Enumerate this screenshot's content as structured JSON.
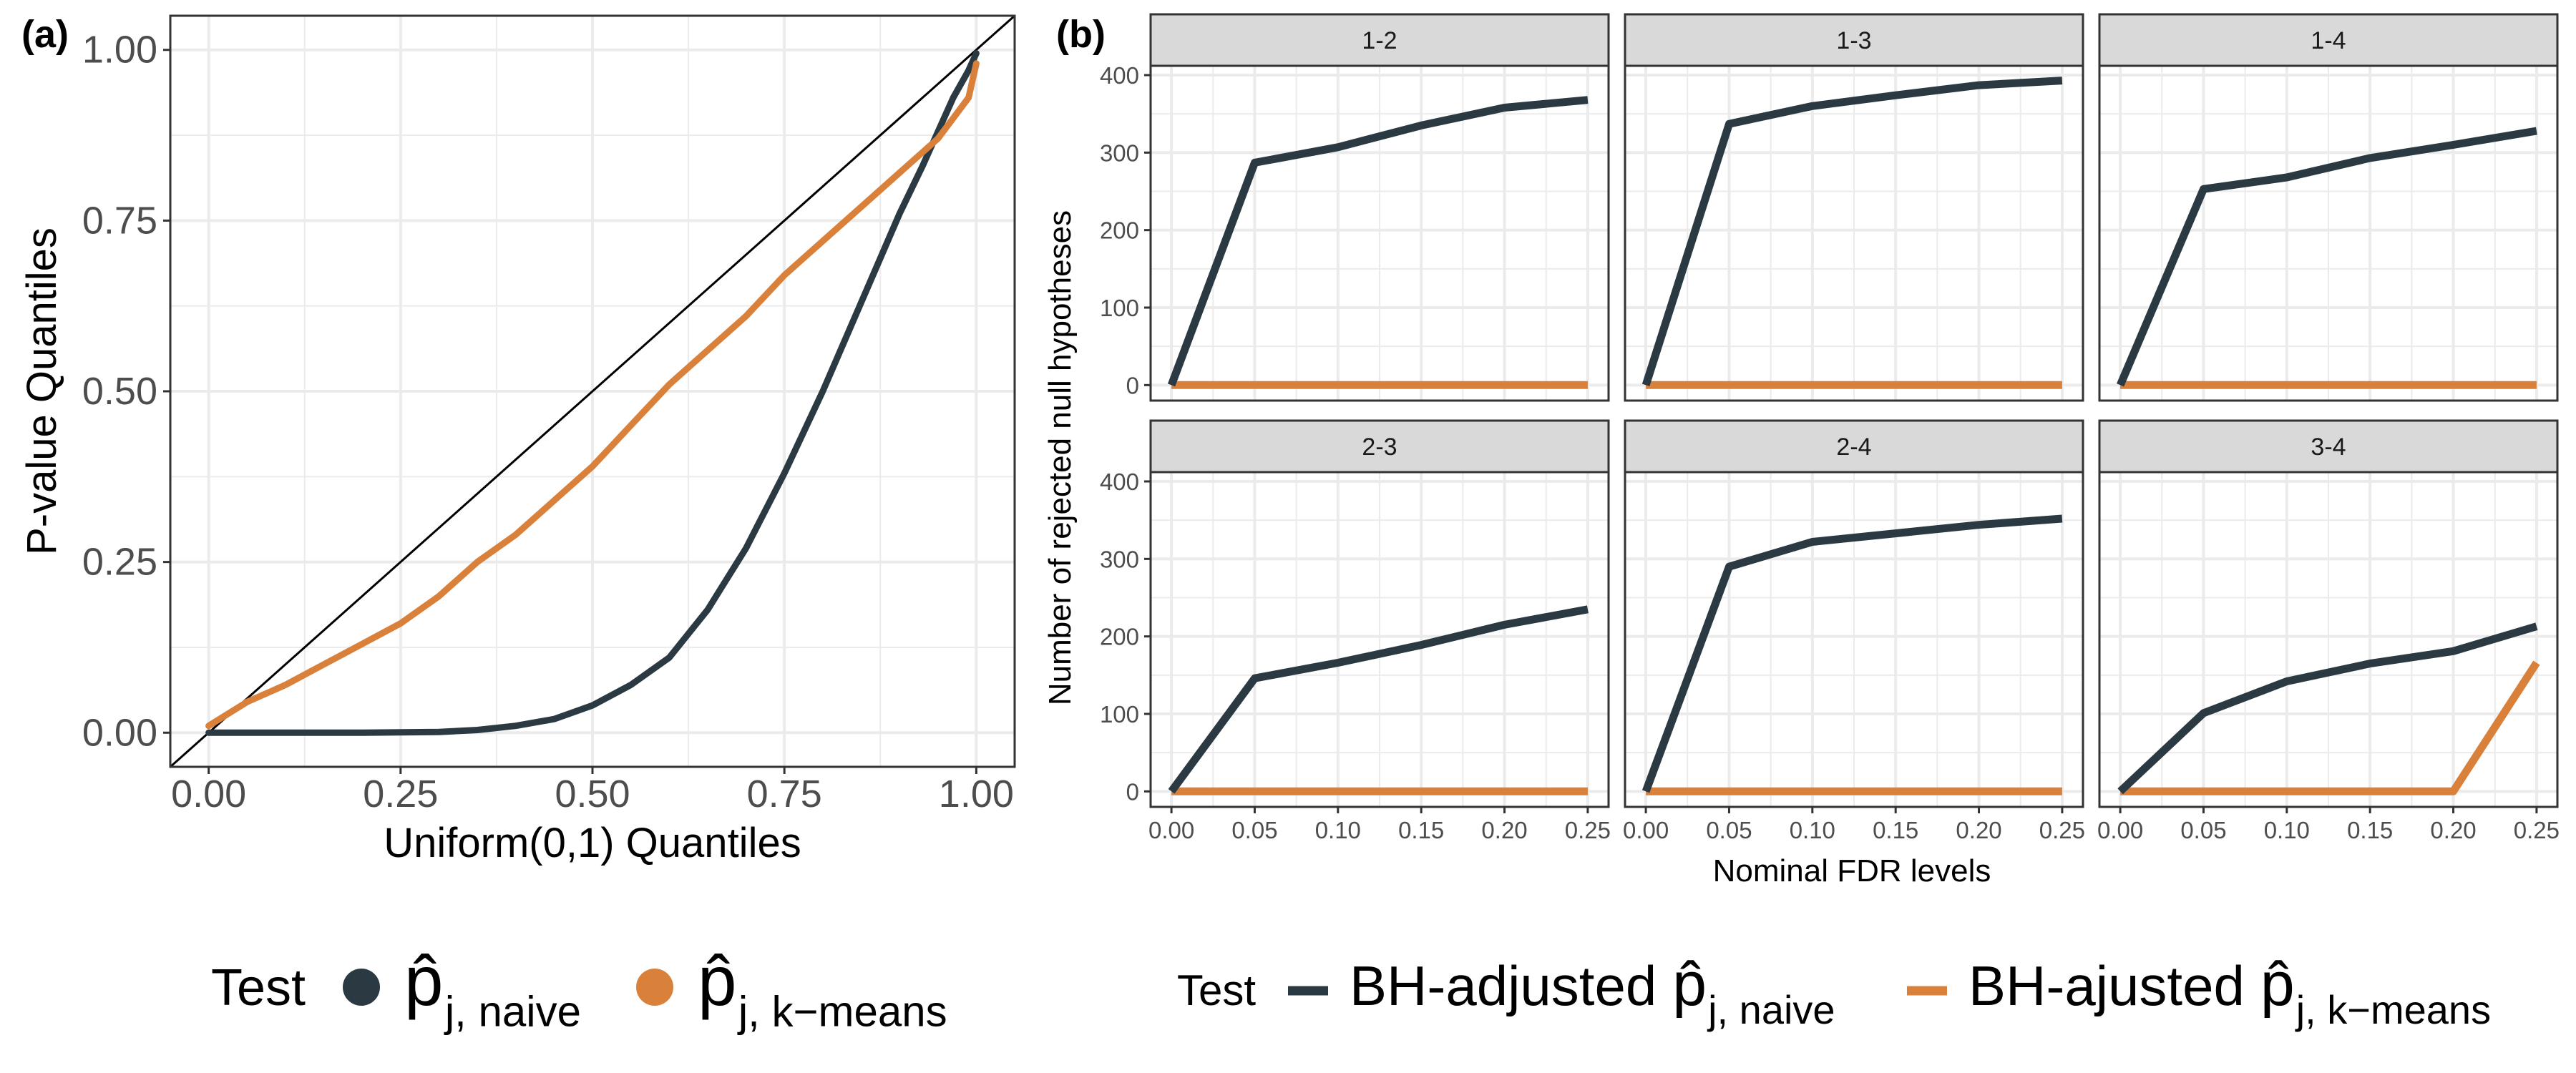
{
  "colors": {
    "naive": "#2b3a42",
    "kmeans": "#d9803a",
    "grid": "#ebebeb",
    "strip_bg": "#d9d9d9",
    "frame": "#333333",
    "text_axis": "#4d4d4d"
  },
  "chart_data": [
    {
      "id": "a",
      "type": "line",
      "panel_label": "(a)",
      "title": "",
      "xlabel": "Uniform(0,1) Quantiles",
      "ylabel": "P-value Quantiles",
      "xlim": [
        -0.05,
        1.05
      ],
      "ylim": [
        -0.05,
        1.05
      ],
      "xticks": [
        0,
        0.25,
        0.5,
        0.75,
        1
      ],
      "xtick_labels": [
        "0.00",
        "0.25",
        "0.50",
        "0.75",
        "1.00"
      ],
      "yticks": [
        0,
        0.25,
        0.5,
        0.75,
        1
      ],
      "ytick_labels": [
        "0.00",
        "0.25",
        "0.50",
        "0.75",
        "1.00"
      ],
      "reference_line": {
        "from": [
          -0.05,
          -0.05
        ],
        "to": [
          1.05,
          1.05
        ]
      },
      "series": [
        {
          "name": "naive",
          "x": [
            0,
            0.1,
            0.2,
            0.3,
            0.35,
            0.4,
            0.45,
            0.5,
            0.55,
            0.6,
            0.65,
            0.7,
            0.75,
            0.8,
            0.85,
            0.9,
            0.93,
            0.95,
            0.97,
            0.99,
            1.0
          ],
          "y": [
            0,
            0,
            0,
            0.001,
            0.004,
            0.01,
            0.02,
            0.04,
            0.07,
            0.11,
            0.18,
            0.27,
            0.38,
            0.5,
            0.63,
            0.76,
            0.83,
            0.88,
            0.93,
            0.97,
            0.995
          ]
        },
        {
          "name": "kmeans",
          "x": [
            0,
            0.05,
            0.1,
            0.15,
            0.2,
            0.25,
            0.3,
            0.35,
            0.4,
            0.45,
            0.5,
            0.55,
            0.6,
            0.65,
            0.7,
            0.75,
            0.8,
            0.85,
            0.9,
            0.95,
            0.97,
            0.99,
            1.0
          ],
          "y": [
            0.01,
            0.045,
            0.07,
            0.1,
            0.13,
            0.16,
            0.2,
            0.25,
            0.29,
            0.34,
            0.39,
            0.45,
            0.51,
            0.56,
            0.61,
            0.67,
            0.72,
            0.77,
            0.82,
            0.87,
            0.9,
            0.93,
            0.98
          ]
        }
      ],
      "legend": {
        "title": "Test",
        "position": "bottom",
        "entries": [
          {
            "series": "naive",
            "symbol": "p̂",
            "subscript": "j, naive"
          },
          {
            "series": "kmeans",
            "symbol": "p̂",
            "subscript": "j, k−means"
          }
        ]
      }
    },
    {
      "id": "b",
      "type": "line",
      "panel_label": "(b)",
      "title": "",
      "xlabel": "Nominal FDR levels",
      "ylabel": "Number of rejected null hypotheses",
      "facet_layout": "2 rows x 3 columns",
      "x": [
        0,
        0.05,
        0.1,
        0.15,
        0.2,
        0.25
      ],
      "xlim": [
        -0.0125,
        0.2625
      ],
      "ylim": [
        -20,
        412
      ],
      "xticks": [
        0,
        0.05,
        0.1,
        0.15,
        0.2,
        0.25
      ],
      "xtick_labels": [
        "0.00",
        "0.05",
        "0.10",
        "0.15",
        "0.20",
        "0.25"
      ],
      "yticks": [
        0,
        100,
        200,
        300,
        400
      ],
      "ytick_labels": [
        "0",
        "100",
        "200",
        "300",
        "400"
      ],
      "facets": [
        {
          "label": "1-2",
          "naive": [
            0,
            287,
            307,
            335,
            358,
            368
          ],
          "kmeans": [
            0,
            0,
            0,
            0,
            0,
            0
          ]
        },
        {
          "label": "1-3",
          "naive": [
            0,
            337,
            360,
            374,
            387,
            393
          ],
          "kmeans": [
            0,
            0,
            0,
            0,
            0,
            0
          ]
        },
        {
          "label": "1-4",
          "naive": [
            0,
            253,
            268,
            293,
            310,
            328
          ],
          "kmeans": [
            0,
            0,
            0,
            0,
            0,
            0
          ]
        },
        {
          "label": "2-3",
          "naive": [
            0,
            146,
            166,
            189,
            215,
            235
          ],
          "kmeans": [
            0,
            0,
            0,
            0,
            0,
            0
          ]
        },
        {
          "label": "2-4",
          "naive": [
            0,
            290,
            322,
            333,
            344,
            352
          ],
          "kmeans": [
            0,
            0,
            0,
            0,
            0,
            0
          ]
        },
        {
          "label": "3-4",
          "naive": [
            0,
            101,
            142,
            165,
            181,
            213
          ],
          "kmeans": [
            0,
            0,
            0,
            0,
            0,
            166
          ]
        }
      ],
      "legend": {
        "title": "Test",
        "position": "bottom",
        "entries": [
          {
            "series": "naive",
            "prefix": "BH-adjusted",
            "symbol": "p̂",
            "subscript": "j, naive"
          },
          {
            "series": "kmeans",
            "prefix": "BH-ajusted",
            "symbol": "p̂",
            "subscript": "j, k−means"
          }
        ]
      }
    }
  ]
}
